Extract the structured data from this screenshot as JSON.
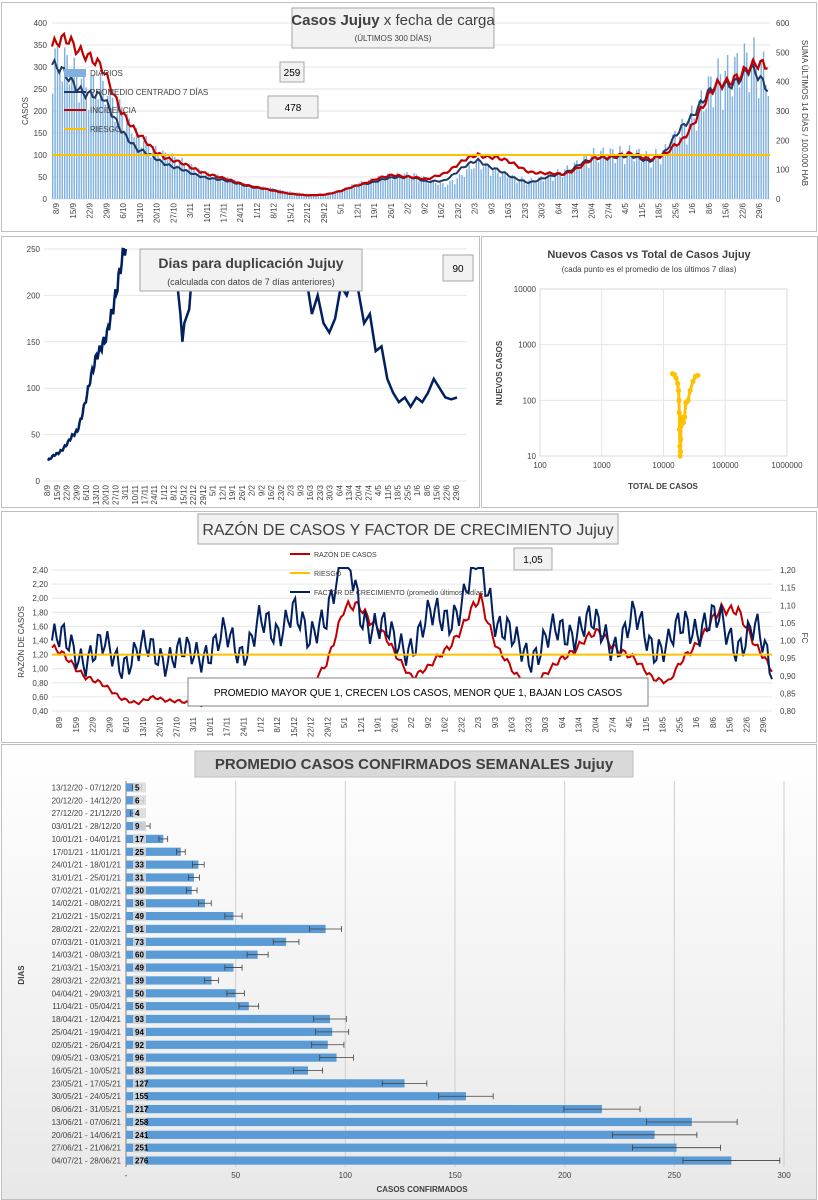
{
  "chart_data": [
    {
      "type": "line",
      "title_bold": "Casos Jujuy",
      "title_rest": " x fecha de carga",
      "subtitle": "(ÚLTIMOS 300 DÍAS)",
      "ylabel": "CASOS",
      "y2label": "SUMA ÚLTIMOS 14 DÍAS / 100.000 HAB",
      "ylim": [
        0,
        400
      ],
      "y2lim": [
        0,
        600
      ],
      "yticks": [
        "0",
        "50",
        "100",
        "150",
        "200",
        "250",
        "300",
        "350",
        "400"
      ],
      "y2ticks": [
        "0",
        "100",
        "200",
        "300",
        "400",
        "500",
        "600"
      ],
      "categories": [
        "8/9",
        "15/9",
        "22/9",
        "29/9",
        "6/10",
        "13/10",
        "20/10",
        "27/10",
        "3/11",
        "10/11",
        "17/11",
        "24/11",
        "1/12",
        "8/12",
        "15/12",
        "22/12",
        "29/12",
        "5/1",
        "12/1",
        "19/1",
        "26/1",
        "2/2",
        "9/2",
        "16/2",
        "23/2",
        "2/3",
        "9/3",
        "16/3",
        "23/3",
        "30/3",
        "6/4",
        "13/4",
        "20/4",
        "27/4",
        "4/5",
        "11/5",
        "18/5",
        "25/5",
        "1/6",
        "8/6",
        "15/6",
        "22/6",
        "29/6"
      ],
      "legend": [
        "DIARIOS",
        "PROMEDIO CENTRADO 7 DÍAS",
        "INCIDENCIA",
        "RIESGO"
      ],
      "badge_diarios": "259",
      "badge_incidencia": "478",
      "riesgo": 100,
      "series": [
        {
          "name": "DIARIOS",
          "values": [
            300,
            275,
            250,
            230,
            195,
            130,
            105,
            90,
            70,
            55,
            45,
            35,
            25,
            22,
            15,
            10,
            8,
            20,
            35,
            45,
            50,
            55,
            40,
            30,
            50,
            80,
            60,
            45,
            40,
            45,
            60,
            80,
            95,
            100,
            95,
            90,
            100,
            150,
            200,
            250,
            280,
            290,
            265
          ]
        },
        {
          "name": "PROMEDIO CENTRADO 7 DÍAS",
          "values": [
            305,
            270,
            245,
            225,
            165,
            110,
            95,
            75,
            60,
            50,
            42,
            35,
            25,
            20,
            12,
            8,
            10,
            18,
            32,
            40,
            48,
            52,
            38,
            42,
            68,
            88,
            70,
            48,
            38,
            48,
            58,
            80,
            92,
            98,
            95,
            88,
            105,
            165,
            215,
            255,
            270,
            290,
            255
          ]
        },
        {
          "name": "INCIDENCIA",
          "values": [
            520,
            535,
            505,
            430,
            315,
            220,
            165,
            135,
            110,
            90,
            70,
            55,
            40,
            28,
            18,
            12,
            15,
            28,
            48,
            68,
            80,
            78,
            65,
            88,
            125,
            150,
            145,
            120,
            95,
            85,
            85,
            110,
            140,
            150,
            150,
            140,
            150,
            200,
            300,
            380,
            420,
            440,
            465
          ]
        }
      ]
    },
    {
      "type": "line",
      "title": "Dias para duplicación Jujuy",
      "subtitle": "(calculada con datos de 7 días anteriores)",
      "badge": "90",
      "ylim": [
        0,
        250
      ],
      "yticks": [
        "0",
        "50",
        "100",
        "150",
        "200",
        "250"
      ],
      "categories": [
        "8/9",
        "15/9",
        "22/9",
        "29/9",
        "6/10",
        "13/10",
        "20/10",
        "27/10",
        "3/11",
        "10/11",
        "17/11",
        "24/11",
        "1/12",
        "8/12",
        "15/12",
        "22/12",
        "29/12",
        "5/1",
        "12/1",
        "19/1",
        "26/1",
        "2/2",
        "9/2",
        "16/2",
        "23/2",
        "2/3",
        "9/3",
        "16/3",
        "23/3",
        "30/3",
        "6/4",
        "13/4",
        "20/4",
        "27/4",
        "4/5",
        "11/5",
        "18/5",
        "25/5",
        "1/6",
        "8/6",
        "15/6",
        "22/6",
        "29/6"
      ],
      "values": [
        22,
        30,
        40,
        55,
        90,
        140,
        150,
        210,
        250,
        null,
        null,
        null,
        null,
        null,
        null,
        null,
        null,
        null,
        null,
        null,
        null,
        null,
        null,
        null,
        null,
        null,
        null,
        null,
        null,
        null,
        null,
        null,
        null,
        null,
        null,
        null,
        null,
        null,
        null,
        null,
        null,
        null,
        null
      ],
      "segment2": {
        "start_index": 30,
        "values": [
          250,
          200,
          150,
          165,
          190,
          230,
          null,
          null,
          null,
          null,
          null,
          null
        ]
      },
      "segment3": {
        "start_index": 42,
        "values": []
      }
    },
    {
      "type": "scatter",
      "title": "Nuevos Casos vs Total de Casos Jujuy",
      "subtitle": "(cada punto es el promedio de los últimos 7 días)",
      "xlabel": "TOTAL DE CASOS",
      "ylabel": "NUEVOS CASOS",
      "xticks": [
        "100",
        "1000",
        "10000",
        "100000",
        "1000000"
      ],
      "yticks": [
        "10",
        "100",
        "1000",
        "10000"
      ],
      "log": true,
      "points": [
        [
          14000,
          300
        ],
        [
          15000,
          290
        ],
        [
          16000,
          250
        ],
        [
          17000,
          200
        ],
        [
          17500,
          150
        ],
        [
          17800,
          100
        ],
        [
          18000,
          60
        ],
        [
          18200,
          30
        ],
        [
          18400,
          15
        ],
        [
          18600,
          10
        ],
        [
          18800,
          12
        ],
        [
          19000,
          20
        ],
        [
          19300,
          35
        ],
        [
          19700,
          45
        ],
        [
          20200,
          50
        ],
        [
          21000,
          40
        ],
        [
          22000,
          50
        ],
        [
          23000,
          90
        ],
        [
          24000,
          95
        ],
        [
          25000,
          100
        ],
        [
          27000,
          150
        ],
        [
          30000,
          220
        ],
        [
          33000,
          270
        ],
        [
          36000,
          280
        ]
      ]
    },
    {
      "type": "line",
      "title": "RAZÓN DE CASOS Y FACTOR DE CRECIMIENTO Jujuy",
      "ylabel": "RAZÓN DE CASOS",
      "y2label": "FC",
      "ylim": [
        0.4,
        2.4
      ],
      "y2lim": [
        0.8,
        1.2
      ],
      "yticks": [
        "0,40",
        "0,60",
        "0,80",
        "1,00",
        "1,20",
        "1,40",
        "1,60",
        "1,80",
        "2,00",
        "2,20",
        "2,40"
      ],
      "y2ticks": [
        "0,80",
        "0,85",
        "0,90",
        "0,95",
        "1,00",
        "1,05",
        "1,10",
        "1,15",
        "1,20"
      ],
      "legend": [
        "RAZÓN DE CASOS",
        "RIESGO",
        "FACTOR DE CRECIMIENTO (promedio últimos 7 días)"
      ],
      "badge": "1,05",
      "note": "PROMEDIO MAYOR QUE 1, CRECEN LOS CASOS, MENOR QUE 1, BAJAN LOS CASOS",
      "categories": [
        "8/9",
        "15/9",
        "22/9",
        "29/9",
        "6/10",
        "13/10",
        "20/10",
        "27/10",
        "3/11",
        "10/11",
        "17/11",
        "24/11",
        "1/12",
        "8/12",
        "15/12",
        "22/12",
        "29/12",
        "5/1",
        "12/1",
        "19/1",
        "26/1",
        "2/2",
        "9/2",
        "16/2",
        "23/2",
        "2/3",
        "9/3",
        "16/3",
        "23/3",
        "30/3",
        "6/4",
        "13/4",
        "20/4",
        "27/4",
        "4/5",
        "11/5",
        "18/5",
        "25/5",
        "1/6",
        "8/6",
        "15/6",
        "22/6",
        "29/6"
      ],
      "riesgo": 1.2,
      "series": [
        {
          "name": "RAZÓN DE CASOS",
          "values": [
            1.3,
            1.1,
            0.9,
            0.75,
            0.6,
            0.5,
            0.6,
            0.55,
            0.5,
            0.5,
            0.6,
            0.5,
            0.55,
            0.5,
            0.55,
            0.7,
            1.1,
            1.8,
            1.9,
            1.6,
            1.2,
            0.9,
            1.0,
            1.3,
            1.6,
            2.0,
            1.3,
            0.9,
            0.8,
            0.95,
            1.2,
            1.4,
            1.5,
            1.3,
            1.1,
            0.9,
            0.8,
            1.2,
            1.5,
            1.8,
            1.9,
            1.3,
            1.0
          ]
        },
        {
          "name": "FACTOR DE CRECIMIENTO (promedio últimos 7 días)",
          "values": [
            1.0,
            0.98,
            0.96,
            0.97,
            0.95,
            0.96,
            0.97,
            0.96,
            0.95,
            0.98,
            1.0,
            0.97,
            1.05,
            1.0,
            1.12,
            0.97,
            1.1,
            1.25,
            1.08,
            1.05,
            0.98,
            1.0,
            1.05,
            1.08,
            1.1,
            1.25,
            1.05,
            0.98,
            0.97,
            1.0,
            1.03,
            1.05,
            1.02,
            1.0,
            1.05,
            1.0,
            0.98,
            1.05,
            1.05,
            1.04,
            1.0,
            1.02,
            0.93
          ]
        }
      ]
    },
    {
      "type": "bar",
      "orientation": "horizontal",
      "title": "PROMEDIO CASOS CONFIRMADOS SEMANALES Jujuy",
      "xlabel": "CASOS CONFIRMADOS",
      "ylabel": "DIAS",
      "xlim": [
        0,
        300
      ],
      "xticks": [
        "-",
        "50",
        "100",
        "150",
        "200",
        "250",
        "300"
      ],
      "categories": [
        "13/12/20 - 07/12/20",
        "20/12/20 - 14/12/20",
        "27/12/20 - 21/12/20",
        "03/01/21 - 28/12/20",
        "10/01/21 - 04/01/21",
        "17/01/21 - 11/01/21",
        "24/01/21 - 18/01/21",
        "31/01/21 - 25/01/21",
        "07/02/21 - 01/02/21",
        "14/02/21 - 08/02/21",
        "21/02/21 - 15/02/21",
        "28/02/21 - 22/02/21",
        "07/03/21 - 01/03/21",
        "14/03/21 - 08/03/21",
        "21/03/21 - 15/03/21",
        "28/03/21 - 22/03/21",
        "04/04/21 - 29/03/21",
        "11/04/21 - 05/04/21",
        "18/04/21 - 12/04/21",
        "25/04/21 - 19/04/21",
        "02/05/21 - 26/04/21",
        "09/05/21 - 03/05/21",
        "16/05/21 - 10/05/21",
        "23/05/21 - 17/05/21",
        "30/05/21 - 24/05/21",
        "06/06/21 - 31/05/21",
        "13/06/21 - 07/06/21",
        "20/06/21 - 14/06/21",
        "27/06/21 - 21/06/21",
        "04/07/21 - 28/06/21"
      ],
      "values": [
        5,
        6,
        4,
        9,
        17,
        25,
        33,
        31,
        30,
        36,
        49,
        91,
        73,
        60,
        49,
        39,
        50,
        56,
        93,
        94,
        92,
        96,
        83,
        127,
        155,
        217,
        258,
        241,
        251,
        276
      ],
      "labels": [
        "5",
        "6",
        "4",
        "9",
        "17",
        "25",
        "33",
        "31",
        "30",
        "36",
        "49",
        "91",
        "73",
        "60",
        "49",
        "39",
        "50",
        "56",
        "93",
        "94",
        "92",
        "96",
        "83",
        "127",
        "155",
        "217",
        "258",
        "241",
        "251",
        "276"
      ]
    }
  ]
}
